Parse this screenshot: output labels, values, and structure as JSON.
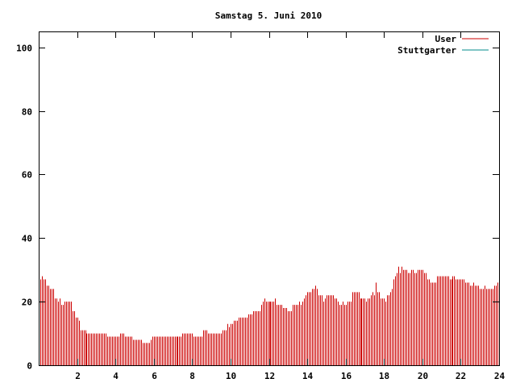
{
  "chart_data": {
    "type": "bar",
    "title": "Samstag 5. Juni 2010",
    "xlabel": "",
    "ylabel": "",
    "xlim": [
      0,
      24
    ],
    "ylim": [
      0,
      105
    ],
    "x_ticks": [
      2,
      4,
      6,
      8,
      10,
      12,
      14,
      16,
      18,
      20,
      22,
      24
    ],
    "y_ticks": [
      0,
      20,
      40,
      60,
      80,
      100
    ],
    "grid": false,
    "legend_position": "top-right",
    "colors": {
      "User": "#cc0000",
      "Stuttgarter": "#008b8b"
    },
    "series": [
      {
        "name": "User",
        "bar_width_hours": 0.08333,
        "values": [
          [
            0.083,
            27
          ],
          [
            0.167,
            28
          ],
          [
            0.25,
            27
          ],
          [
            0.333,
            27
          ],
          [
            0.417,
            25
          ],
          [
            0.5,
            25
          ],
          [
            0.583,
            24
          ],
          [
            0.667,
            24
          ],
          [
            0.75,
            24
          ],
          [
            0.833,
            21
          ],
          [
            0.917,
            21
          ],
          [
            1.0,
            20
          ],
          [
            1.083,
            21
          ],
          [
            1.167,
            19
          ],
          [
            1.25,
            19
          ],
          [
            1.333,
            20
          ],
          [
            1.417,
            20
          ],
          [
            1.5,
            20
          ],
          [
            1.583,
            20
          ],
          [
            1.667,
            20
          ],
          [
            1.75,
            17
          ],
          [
            1.833,
            17
          ],
          [
            1.917,
            15
          ],
          [
            2.0,
            15
          ],
          [
            2.083,
            14
          ],
          [
            2.167,
            11
          ],
          [
            2.25,
            11
          ],
          [
            2.333,
            11
          ],
          [
            2.417,
            11
          ],
          [
            2.5,
            10
          ],
          [
            2.583,
            10
          ],
          [
            2.667,
            10
          ],
          [
            2.75,
            10
          ],
          [
            2.833,
            10
          ],
          [
            2.917,
            10
          ],
          [
            3.0,
            10
          ],
          [
            3.083,
            10
          ],
          [
            3.167,
            10
          ],
          [
            3.25,
            10
          ],
          [
            3.333,
            10
          ],
          [
            3.417,
            10
          ],
          [
            3.5,
            10
          ],
          [
            3.583,
            9
          ],
          [
            3.667,
            9
          ],
          [
            3.75,
            9
          ],
          [
            3.833,
            9
          ],
          [
            3.917,
            9
          ],
          [
            4.0,
            9
          ],
          [
            4.083,
            9
          ],
          [
            4.167,
            9
          ],
          [
            4.25,
            10
          ],
          [
            4.333,
            10
          ],
          [
            4.417,
            10
          ],
          [
            4.5,
            9
          ],
          [
            4.583,
            9
          ],
          [
            4.667,
            9
          ],
          [
            4.75,
            9
          ],
          [
            4.833,
            9
          ],
          [
            4.917,
            8
          ],
          [
            5.0,
            8
          ],
          [
            5.083,
            8
          ],
          [
            5.167,
            8
          ],
          [
            5.25,
            8
          ],
          [
            5.333,
            8
          ],
          [
            5.417,
            7
          ],
          [
            5.5,
            7
          ],
          [
            5.583,
            7
          ],
          [
            5.667,
            7
          ],
          [
            5.75,
            7
          ],
          [
            5.833,
            8
          ],
          [
            5.917,
            9
          ],
          [
            6.0,
            9
          ],
          [
            6.083,
            9
          ],
          [
            6.167,
            9
          ],
          [
            6.25,
            9
          ],
          [
            6.333,
            9
          ],
          [
            6.417,
            9
          ],
          [
            6.5,
            9
          ],
          [
            6.583,
            9
          ],
          [
            6.667,
            9
          ],
          [
            6.75,
            9
          ],
          [
            6.833,
            9
          ],
          [
            6.917,
            9
          ],
          [
            7.0,
            9
          ],
          [
            7.083,
            9
          ],
          [
            7.167,
            9
          ],
          [
            7.25,
            9
          ],
          [
            7.333,
            9
          ],
          [
            7.417,
            9
          ],
          [
            7.5,
            10
          ],
          [
            7.583,
            10
          ],
          [
            7.667,
            10
          ],
          [
            7.75,
            10
          ],
          [
            7.833,
            10
          ],
          [
            7.917,
            10
          ],
          [
            8.0,
            10
          ],
          [
            8.083,
            9
          ],
          [
            8.167,
            9
          ],
          [
            8.25,
            9
          ],
          [
            8.333,
            9
          ],
          [
            8.417,
            9
          ],
          [
            8.5,
            9
          ],
          [
            8.583,
            11
          ],
          [
            8.667,
            11
          ],
          [
            8.75,
            11
          ],
          [
            8.833,
            10
          ],
          [
            8.917,
            10
          ],
          [
            9.0,
            10
          ],
          [
            9.083,
            10
          ],
          [
            9.167,
            10
          ],
          [
            9.25,
            10
          ],
          [
            9.333,
            10
          ],
          [
            9.417,
            10
          ],
          [
            9.5,
            10
          ],
          [
            9.583,
            11
          ],
          [
            9.667,
            11
          ],
          [
            9.75,
            11
          ],
          [
            9.833,
            13
          ],
          [
            9.917,
            12
          ],
          [
            10.0,
            13
          ],
          [
            10.083,
            13
          ],
          [
            10.167,
            14
          ],
          [
            10.25,
            14
          ],
          [
            10.333,
            14
          ],
          [
            10.417,
            15
          ],
          [
            10.5,
            15
          ],
          [
            10.583,
            15
          ],
          [
            10.667,
            15
          ],
          [
            10.75,
            15
          ],
          [
            10.833,
            15
          ],
          [
            10.917,
            16
          ],
          [
            11.0,
            16
          ],
          [
            11.083,
            16
          ],
          [
            11.167,
            17
          ],
          [
            11.25,
            17
          ],
          [
            11.333,
            17
          ],
          [
            11.417,
            17
          ],
          [
            11.5,
            17
          ],
          [
            11.583,
            19
          ],
          [
            11.667,
            20
          ],
          [
            11.75,
            21
          ],
          [
            11.833,
            20
          ],
          [
            11.917,
            20
          ],
          [
            12.0,
            20
          ],
          [
            12.083,
            20
          ],
          [
            12.167,
            20
          ],
          [
            12.25,
            20
          ],
          [
            12.333,
            21
          ],
          [
            12.417,
            19
          ],
          [
            12.5,
            19
          ],
          [
            12.583,
            19
          ],
          [
            12.667,
            19
          ],
          [
            12.75,
            18
          ],
          [
            12.833,
            18
          ],
          [
            12.917,
            18
          ],
          [
            13.0,
            17
          ],
          [
            13.083,
            17
          ],
          [
            13.167,
            17
          ],
          [
            13.25,
            19
          ],
          [
            13.333,
            19
          ],
          [
            13.417,
            19
          ],
          [
            13.5,
            19
          ],
          [
            13.583,
            20
          ],
          [
            13.667,
            19
          ],
          [
            13.75,
            20
          ],
          [
            13.833,
            21
          ],
          [
            13.917,
            22
          ],
          [
            14.0,
            23
          ],
          [
            14.083,
            23
          ],
          [
            14.167,
            23
          ],
          [
            14.25,
            24
          ],
          [
            14.333,
            24
          ],
          [
            14.417,
            25
          ],
          [
            14.5,
            24
          ],
          [
            14.583,
            22
          ],
          [
            14.667,
            22
          ],
          [
            14.75,
            22
          ],
          [
            14.833,
            20
          ],
          [
            14.917,
            21
          ],
          [
            15.0,
            22
          ],
          [
            15.083,
            22
          ],
          [
            15.167,
            22
          ],
          [
            15.25,
            22
          ],
          [
            15.333,
            22
          ],
          [
            15.417,
            21
          ],
          [
            15.5,
            21
          ],
          [
            15.583,
            20
          ],
          [
            15.667,
            19
          ],
          [
            15.75,
            19
          ],
          [
            15.833,
            20
          ],
          [
            15.917,
            19
          ],
          [
            16.0,
            19
          ],
          [
            16.083,
            20
          ],
          [
            16.167,
            20
          ],
          [
            16.25,
            20
          ],
          [
            16.333,
            23
          ],
          [
            16.417,
            23
          ],
          [
            16.5,
            23
          ],
          [
            16.583,
            23
          ],
          [
            16.667,
            23
          ],
          [
            16.75,
            21
          ],
          [
            16.833,
            21
          ],
          [
            16.917,
            21
          ],
          [
            17.0,
            21
          ],
          [
            17.083,
            20
          ],
          [
            17.167,
            21
          ],
          [
            17.25,
            21
          ],
          [
            17.333,
            22
          ],
          [
            17.417,
            23
          ],
          [
            17.5,
            22
          ],
          [
            17.583,
            26
          ],
          [
            17.667,
            23
          ],
          [
            17.75,
            23
          ],
          [
            17.833,
            21
          ],
          [
            17.917,
            21
          ],
          [
            18.0,
            21
          ],
          [
            18.083,
            20
          ],
          [
            18.167,
            22
          ],
          [
            18.25,
            22
          ],
          [
            18.333,
            23
          ],
          [
            18.417,
            24
          ],
          [
            18.5,
            27
          ],
          [
            18.583,
            28
          ],
          [
            18.667,
            29
          ],
          [
            18.75,
            31
          ],
          [
            18.833,
            29
          ],
          [
            18.917,
            31
          ],
          [
            19.0,
            30
          ],
          [
            19.083,
            30
          ],
          [
            19.167,
            30
          ],
          [
            19.25,
            29
          ],
          [
            19.333,
            29
          ],
          [
            19.417,
            30
          ],
          [
            19.5,
            30
          ],
          [
            19.583,
            29
          ],
          [
            19.667,
            29
          ],
          [
            19.75,
            30
          ],
          [
            19.833,
            30
          ],
          [
            19.917,
            30
          ],
          [
            20.0,
            30
          ],
          [
            20.083,
            29
          ],
          [
            20.167,
            29
          ],
          [
            20.25,
            27
          ],
          [
            20.333,
            27
          ],
          [
            20.417,
            26
          ],
          [
            20.5,
            26
          ],
          [
            20.583,
            26
          ],
          [
            20.667,
            26
          ],
          [
            20.75,
            28
          ],
          [
            20.833,
            28
          ],
          [
            20.917,
            28
          ],
          [
            21.0,
            28
          ],
          [
            21.083,
            28
          ],
          [
            21.167,
            28
          ],
          [
            21.25,
            28
          ],
          [
            21.333,
            28
          ],
          [
            21.417,
            27
          ],
          [
            21.5,
            27
          ],
          [
            21.583,
            28
          ],
          [
            21.667,
            28
          ],
          [
            21.75,
            27
          ],
          [
            21.833,
            27
          ],
          [
            21.917,
            27
          ],
          [
            22.0,
            27
          ],
          [
            22.083,
            27
          ],
          [
            22.167,
            27
          ],
          [
            22.25,
            26
          ],
          [
            22.333,
            26
          ],
          [
            22.417,
            26
          ],
          [
            22.5,
            25
          ],
          [
            22.583,
            25
          ],
          [
            22.667,
            26
          ],
          [
            22.75,
            25
          ],
          [
            22.833,
            25
          ],
          [
            22.917,
            25
          ],
          [
            23.0,
            24
          ],
          [
            23.083,
            24
          ],
          [
            23.167,
            24
          ],
          [
            23.25,
            25
          ],
          [
            23.333,
            24
          ],
          [
            23.417,
            24
          ],
          [
            23.5,
            24
          ],
          [
            23.583,
            24
          ],
          [
            23.667,
            24
          ],
          [
            23.75,
            25
          ],
          [
            23.833,
            25
          ],
          [
            23.917,
            26
          ]
        ]
      },
      {
        "name": "Stuttgarter",
        "values": []
      }
    ]
  }
}
